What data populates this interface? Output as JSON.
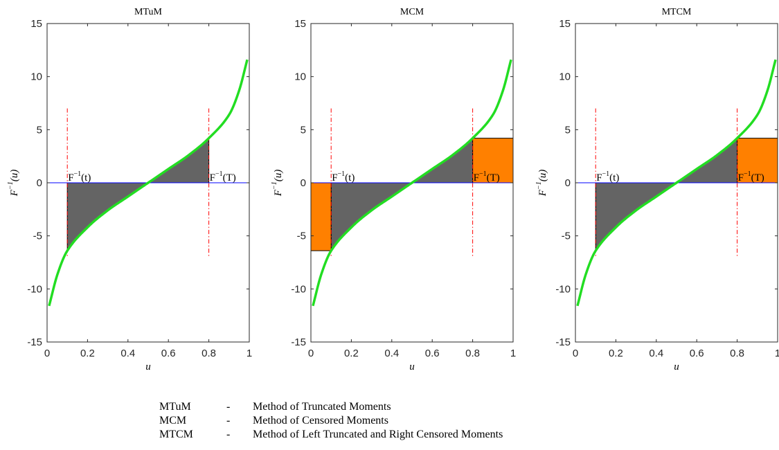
{
  "chart_data": [
    {
      "type": "area",
      "title": "MTuM",
      "xlabel": "u",
      "ylabel": "F⁻¹(u)",
      "xlim": [
        0,
        1
      ],
      "ylim": [
        -15,
        15
      ],
      "xticks": [
        "0",
        "0.2",
        "0.4",
        "0.6",
        "0.8",
        "1"
      ],
      "yticks": [
        "15",
        "10",
        "5",
        "0",
        "-5",
        "-10",
        "-15"
      ],
      "t": 0.1,
      "T": 0.8,
      "annotations": [
        "F⁻¹(t)",
        "F⁻¹(T)"
      ],
      "left_censored": false,
      "right_censored": false
    },
    {
      "type": "area",
      "title": "MCM",
      "xlabel": "u",
      "ylabel": "F⁻¹(u)",
      "xlim": [
        0,
        1
      ],
      "ylim": [
        -15,
        15
      ],
      "xticks": [
        "0",
        "0.2",
        "0.4",
        "0.6",
        "0.8",
        "1"
      ],
      "yticks": [
        "15",
        "10",
        "5",
        "0",
        "-5",
        "-10",
        "-15"
      ],
      "t": 0.1,
      "T": 0.8,
      "annotations": [
        "F⁻¹(t)",
        "F⁻¹(T)"
      ],
      "left_censored": true,
      "right_censored": true
    },
    {
      "type": "area",
      "title": "MTCM",
      "xlabel": "u",
      "ylabel": "F⁻¹(u)",
      "xlim": [
        0,
        1
      ],
      "ylim": [
        -15,
        15
      ],
      "xticks": [
        "0",
        "0.2",
        "0.4",
        "0.6",
        "0.8",
        "1"
      ],
      "yticks": [
        "15",
        "10",
        "5",
        "0",
        "-5",
        "-10",
        "-15"
      ],
      "t": 0.1,
      "T": 0.8,
      "annotations": [
        "F⁻¹(t)",
        "F⁻¹(T)"
      ],
      "left_censored": false,
      "right_censored": true
    }
  ],
  "curve": {
    "u": [
      0.01,
      0.05,
      0.1,
      0.2,
      0.3,
      0.4,
      0.5,
      0.6,
      0.7,
      0.8,
      0.9,
      0.95,
      0.99
    ],
    "values": [
      -11.6,
      -8.7,
      -6.4,
      -4.2,
      -2.6,
      -1.3,
      0,
      1.3,
      2.6,
      4.2,
      6.4,
      8.7,
      11.6
    ]
  },
  "colors": {
    "curve": "#22dd22",
    "shaded": "#646464",
    "censored": "#ff8000",
    "zero_line": "#0000ff",
    "limit_lines": "#ff0000"
  },
  "legend": [
    {
      "abbr": "MTuM",
      "sep": "-",
      "desc": "Method of Truncated Moments"
    },
    {
      "abbr": "MCM",
      "sep": "-",
      "desc": "Method of Censored Moments"
    },
    {
      "abbr": "MTCM",
      "sep": "-",
      "desc": "Method of Left Truncated and Right Censored Moments"
    }
  ]
}
